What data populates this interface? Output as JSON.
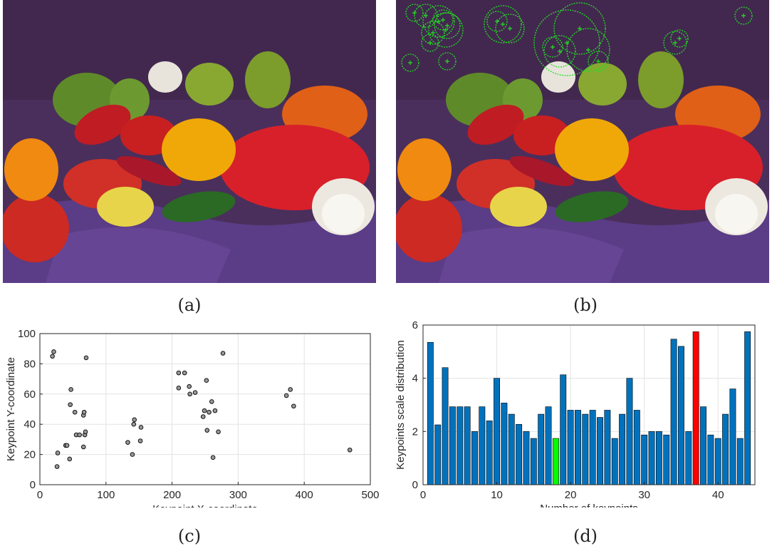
{
  "captions": {
    "a": "(a)",
    "b": "(b)",
    "c": "(c)",
    "d": "(d)"
  },
  "photo": {
    "subject": "peppers-photo"
  },
  "chart_data": [
    {
      "type": "scatter",
      "xlabel": "Keypoint X-coordinate",
      "ylabel": "Keypoint Y-coordinate",
      "xlim": [
        0,
        500
      ],
      "ylim": [
        0,
        100
      ],
      "xticks": [
        0,
        100,
        200,
        300,
        400,
        500
      ],
      "yticks": [
        0,
        20,
        40,
        60,
        80,
        100
      ],
      "grid": true,
      "points": [
        [
          19,
          85
        ],
        [
          21,
          88
        ],
        [
          26,
          12
        ],
        [
          27,
          21
        ],
        [
          39,
          26
        ],
        [
          41,
          26
        ],
        [
          45,
          17
        ],
        [
          46,
          53
        ],
        [
          47,
          63
        ],
        [
          53,
          48
        ],
        [
          55,
          33
        ],
        [
          60,
          33
        ],
        [
          66,
          25
        ],
        [
          66,
          46
        ],
        [
          67,
          48
        ],
        [
          68,
          33
        ],
        [
          69,
          35
        ],
        [
          70,
          84
        ],
        [
          133,
          28
        ],
        [
          140,
          20
        ],
        [
          142,
          40
        ],
        [
          143,
          43
        ],
        [
          152,
          29
        ],
        [
          153,
          38
        ],
        [
          210,
          74
        ],
        [
          210,
          64
        ],
        [
          219,
          74
        ],
        [
          226,
          65
        ],
        [
          227,
          60
        ],
        [
          235,
          61
        ],
        [
          247,
          45
        ],
        [
          249,
          49
        ],
        [
          252,
          69
        ],
        [
          253,
          36
        ],
        [
          256,
          48
        ],
        [
          260,
          55
        ],
        [
          262,
          18
        ],
        [
          265,
          49
        ],
        [
          270,
          35
        ],
        [
          277,
          87
        ],
        [
          373,
          59
        ],
        [
          379,
          63
        ],
        [
          384,
          52
        ],
        [
          469,
          23
        ]
      ]
    },
    {
      "type": "bar",
      "xlabel": "Number of keypoints",
      "ylabel": "Keypoints scale distribution",
      "xlim": [
        0,
        45
      ],
      "ylim": [
        0,
        6
      ],
      "xticks": [
        0,
        10,
        20,
        30,
        40
      ],
      "yticks": [
        0,
        2,
        4,
        6
      ],
      "grid": true,
      "colors": {
        "default": "#0072BD",
        "min_highlight": "#00FF00",
        "max_highlight": "#FF0000"
      },
      "highlight_min_index": 18,
      "highlight_max_index": 37,
      "values": [
        5.35,
        2.25,
        4.4,
        2.93,
        2.93,
        2.93,
        2.0,
        2.93,
        2.4,
        4.0,
        3.07,
        2.65,
        2.27,
        2.0,
        1.74,
        2.65,
        2.93,
        1.74,
        4.13,
        2.8,
        2.8,
        2.65,
        2.8,
        2.53,
        2.8,
        1.74,
        2.65,
        4.0,
        2.8,
        1.87,
        2.0,
        2.0,
        1.87,
        5.47,
        5.2,
        2.0,
        5.75,
        2.93,
        1.87,
        1.74,
        2.65,
        3.6,
        1.74,
        5.75
      ]
    }
  ]
}
